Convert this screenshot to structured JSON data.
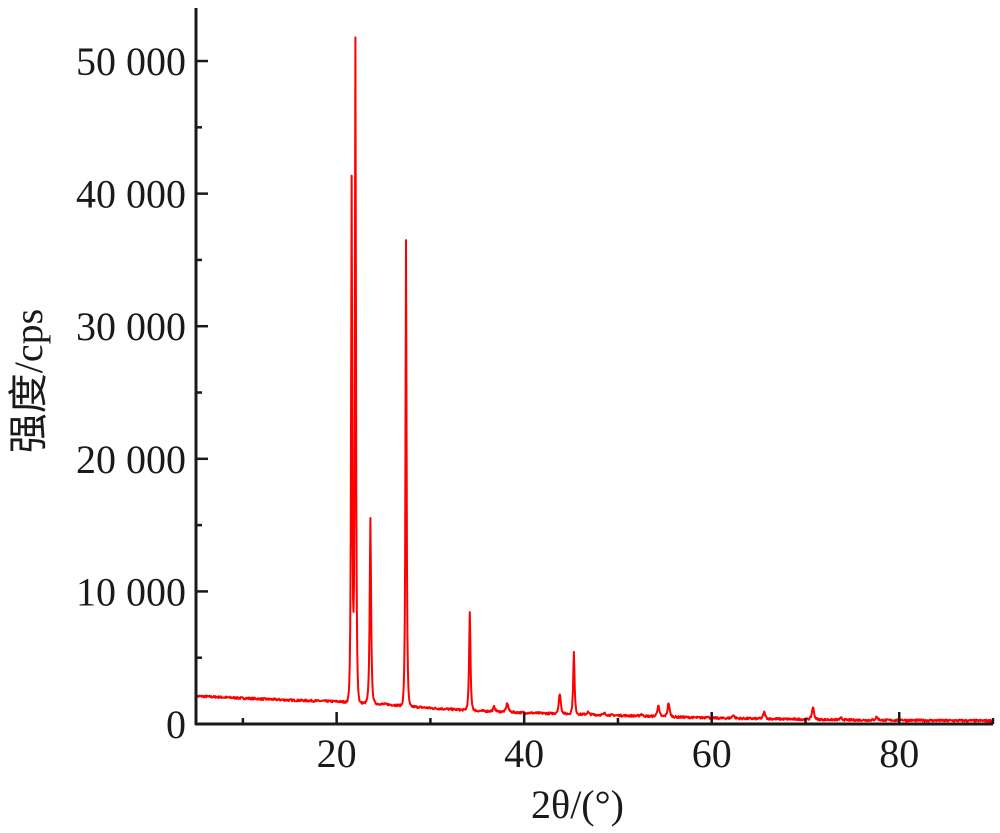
{
  "chart_data": {
    "type": "line",
    "xlabel": "2θ/(°)",
    "ylabel": "强度/cps",
    "xlim": [
      5,
      90
    ],
    "ylim": [
      0,
      54000
    ],
    "x_ticks": [
      {
        "value": 20,
        "label": "20"
      },
      {
        "value": 40,
        "label": "40"
      },
      {
        "value": 60,
        "label": "60"
      },
      {
        "value": 80,
        "label": "80"
      }
    ],
    "y_ticks": [
      {
        "value": 0,
        "label": "0"
      },
      {
        "value": 10000,
        "label": "10 000"
      },
      {
        "value": 20000,
        "label": "20 000"
      },
      {
        "value": 30000,
        "label": "30 000"
      },
      {
        "value": 40000,
        "label": "40 000"
      },
      {
        "value": 50000,
        "label": "50 000"
      }
    ],
    "grid": false,
    "line_color": "#ff0000",
    "baseline": [
      [
        5,
        2100
      ],
      [
        10,
        1950
      ],
      [
        15,
        1800
      ],
      [
        20,
        1700
      ],
      [
        25,
        1500
      ],
      [
        30,
        1200
      ],
      [
        35,
        1000
      ],
      [
        40,
        850
      ],
      [
        45,
        750
      ],
      [
        50,
        650
      ],
      [
        55,
        550
      ],
      [
        60,
        450
      ],
      [
        65,
        400
      ],
      [
        70,
        350
      ],
      [
        75,
        300
      ],
      [
        80,
        280
      ],
      [
        85,
        260
      ],
      [
        90,
        250
      ]
    ],
    "peaks": [
      {
        "x": 21.6,
        "y": 41000
      },
      {
        "x": 22.0,
        "y": 51500
      },
      {
        "x": 23.6,
        "y": 15500
      },
      {
        "x": 27.4,
        "y": 36500
      },
      {
        "x": 34.2,
        "y": 8400
      },
      {
        "x": 36.8,
        "y": 1300
      },
      {
        "x": 38.2,
        "y": 1600
      },
      {
        "x": 43.8,
        "y": 2300
      },
      {
        "x": 45.3,
        "y": 5400
      },
      {
        "x": 46.8,
        "y": 900
      },
      {
        "x": 48.6,
        "y": 800
      },
      {
        "x": 52.5,
        "y": 750
      },
      {
        "x": 54.3,
        "y": 1400
      },
      {
        "x": 55.4,
        "y": 1600
      },
      {
        "x": 59.5,
        "y": 600
      },
      {
        "x": 62.3,
        "y": 700
      },
      {
        "x": 65.6,
        "y": 900
      },
      {
        "x": 70.8,
        "y": 1300
      },
      {
        "x": 73.8,
        "y": 450
      },
      {
        "x": 77.6,
        "y": 550
      },
      {
        "x": 80.2,
        "y": 350
      }
    ]
  }
}
